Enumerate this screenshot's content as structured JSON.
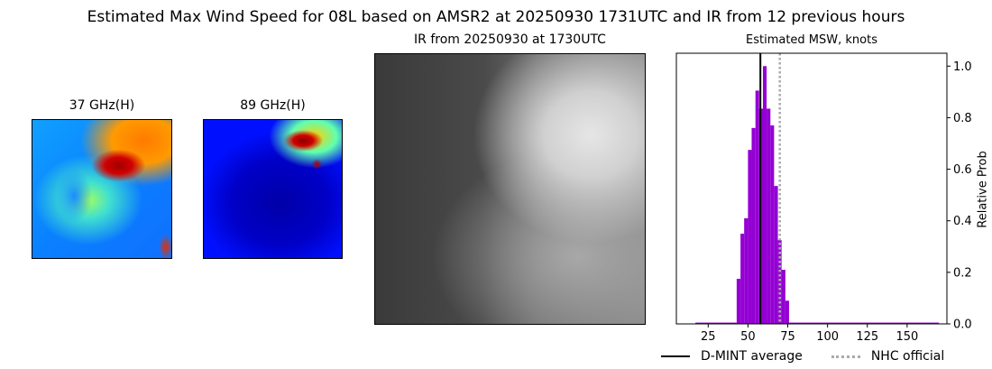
{
  "title": "Estimated Max Wind Speed for 08L based on AMSR2 at 20250930 1731UTC and IR from 12 previous hours",
  "panels": {
    "mw37_label": "37 GHz(H)",
    "mw89_label": "89 GHz(H)",
    "ir_label": "IR from 20250930 at 1730UTC"
  },
  "chart_data": {
    "type": "bar",
    "title": "Estimated MSW, knots",
    "xlabel": "",
    "ylabel": "Relative Prob",
    "xlim": [
      5,
      175
    ],
    "ylim": [
      0,
      1.05
    ],
    "xticks": [
      25,
      50,
      75,
      100,
      125,
      150
    ],
    "yticks": [
      0.0,
      0.2,
      0.4,
      0.6,
      0.8,
      1.0
    ],
    "y_axis_side": "right",
    "bar_color": "#9400d3",
    "bins": [
      {
        "x0": 17,
        "x1": 42.9,
        "p": 0.005
      },
      {
        "x0": 42.9,
        "x1": 45.3,
        "p": 0.175
      },
      {
        "x0": 45.3,
        "x1": 47.6,
        "p": 0.35
      },
      {
        "x0": 47.6,
        "x1": 50.0,
        "p": 0.41
      },
      {
        "x0": 50.0,
        "x1": 52.3,
        "p": 0.675
      },
      {
        "x0": 52.3,
        "x1": 54.7,
        "p": 0.76
      },
      {
        "x0": 54.7,
        "x1": 57.0,
        "p": 0.905
      },
      {
        "x0": 57.0,
        "x1": 59.4,
        "p": 0.835
      },
      {
        "x0": 59.4,
        "x1": 61.7,
        "p": 1.0
      },
      {
        "x0": 61.7,
        "x1": 64.1,
        "p": 0.835
      },
      {
        "x0": 64.1,
        "x1": 66.4,
        "p": 0.77
      },
      {
        "x0": 66.4,
        "x1": 68.8,
        "p": 0.535
      },
      {
        "x0": 68.8,
        "x1": 71.1,
        "p": 0.325
      },
      {
        "x0": 71.1,
        "x1": 73.5,
        "p": 0.21
      },
      {
        "x0": 73.5,
        "x1": 75.8,
        "p": 0.09
      },
      {
        "x0": 75.8,
        "x1": 170,
        "p": 0.005
      }
    ],
    "dmint_average": 57.8,
    "nhc_official": 70,
    "legend": [
      {
        "label": "D-MINT average",
        "color": "#000000",
        "style": "solid"
      },
      {
        "label": "NHC official",
        "color": "#aaaaaa",
        "style": "dotted"
      }
    ],
    "legend_placement": "bottom"
  }
}
